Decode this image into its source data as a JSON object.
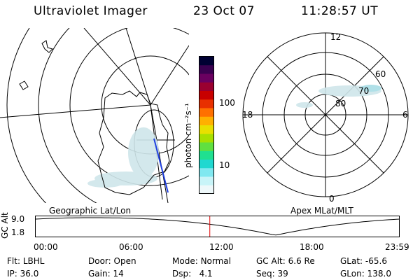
{
  "header": {
    "title": "Ultraviolet Imager",
    "date": "23 Oct 07",
    "time": "11:28:57 UT"
  },
  "colorbar": {
    "label": "photon cm⁻²s⁻¹",
    "ticks": [
      "100",
      "10"
    ],
    "colors": [
      "#000033",
      "#3a0050",
      "#6a0060",
      "#9a0030",
      "#c80000",
      "#e83000",
      "#ff7000",
      "#ffb000",
      "#e8e000",
      "#a8e000",
      "#60e040",
      "#20e090",
      "#20d8d0",
      "#80e8f0",
      "#c8f4f8",
      "#eef8fa"
    ]
  },
  "polar": {
    "mlt_labels": [
      "12",
      "18",
      "6",
      "0"
    ],
    "mlat_labels": [
      "60",
      "70",
      "80"
    ]
  },
  "map_labels": {
    "left": "Geographic Lat/Lon",
    "right": "Apex MLat/MLT"
  },
  "timeline": {
    "ylabel": "GC Alt",
    "y_ticks": [
      "9.0",
      "1.8"
    ],
    "x_ticks": [
      "00:00",
      "06:00",
      "12:00",
      "18:00",
      "23:59"
    ],
    "current_time_hours": 11.48,
    "marker_color": "#e00000"
  },
  "footer": {
    "row1": [
      {
        "key": "Flt:",
        "val": "LBHL"
      },
      {
        "key": "Door:",
        "val": "Open"
      },
      {
        "key": "Mode:",
        "val": "Normal"
      },
      {
        "key": "GC Alt:",
        "val": "6.6 Re"
      },
      {
        "key": "GLat:",
        "val": "-65.6"
      }
    ],
    "row2": [
      {
        "key": "IP:",
        "val": "36.0"
      },
      {
        "key": "Gain:",
        "val": "14"
      },
      {
        "key": "Dsp:",
        "val": "4.1"
      },
      {
        "key": "Seq:",
        "val": "39"
      },
      {
        "key": "GLon:",
        "val": "138.0"
      }
    ]
  }
}
